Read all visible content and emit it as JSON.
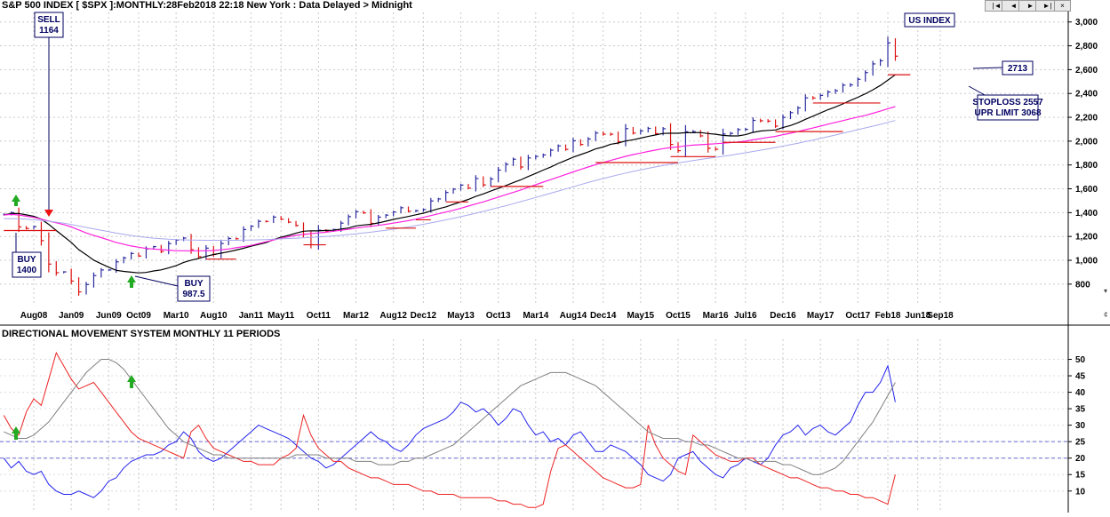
{
  "header": {
    "title": "S&P 500 INDEX [ $SPX ]:MONTHLY:28Feb2018 22:18 New York : Data Delayed > Midnight",
    "index_label": "US INDEX",
    "nav_buttons": [
      "|◄",
      "◄",
      "►",
      "►|"
    ],
    "close_label": "×"
  },
  "annotations": {
    "sell": [
      "SELL",
      "1164"
    ],
    "buy1": [
      "BUY",
      "1400"
    ],
    "buy2": [
      "BUY",
      "987.5"
    ],
    "last_price": "2713",
    "stoploss": "STOPLOSS 2557",
    "upr_limit": "UPR LIMIT 3068"
  },
  "colors": {
    "price_bar_up": "#2a2aa0",
    "price_bar_down": "#dd1111",
    "ma_short": "#000000",
    "ma_medium": "#ff22dd",
    "ma_long": "#a9a9ee",
    "support_lines": "#dd1111",
    "dm_plus": "#2222ee",
    "dm_minus": "#ee2222",
    "adx": "#808080",
    "buy_arrow": "#22aa22",
    "sell_arrow": "#ee1111"
  },
  "chart_data": [
    {
      "type": "bar",
      "subtype": "ohlc-monthly",
      "x_tick_labels": [
        "Aug08",
        "Jan09",
        "Jun09",
        "Oct09",
        "Mar10",
        "Aug10",
        "Jan11",
        "May11",
        "Oct11",
        "Mar12",
        "Aug12",
        "Dec12",
        "May13",
        "Oct13",
        "Mar14",
        "Aug14",
        "Dec14",
        "May15",
        "Oct15",
        "Mar16",
        "Jul16",
        "Dec16",
        "May17",
        "Oct17",
        "Feb18",
        "Jun18",
        "Sep18"
      ],
      "y_tick_labels": [
        "800",
        "1,000",
        "1,200",
        "1,400",
        "1,600",
        "1,800",
        "2,000",
        "2,200",
        "2,400",
        "2,600",
        "2,800",
        "3,000"
      ],
      "ylim": [
        620,
        3080
      ],
      "bars_start": "Apr2008",
      "closes": [
        1385,
        1400,
        1280,
        1267,
        1283,
        1165,
        968,
        896,
        903,
        826,
        735,
        797,
        872,
        919,
        919,
        987,
        1020,
        1057,
        1036,
        1096,
        1115,
        1074,
        1140,
        1169,
        1187,
        1089,
        1031,
        1102,
        1049,
        1141,
        1183,
        1181,
        1258,
        1286,
        1327,
        1326,
        1363,
        1345,
        1320,
        1292,
        1219,
        1131,
        1253,
        1247,
        1258,
        1312,
        1366,
        1408,
        1398,
        1310,
        1362,
        1379,
        1406,
        1441,
        1412,
        1416,
        1426,
        1498,
        1515,
        1569,
        1597,
        1631,
        1606,
        1686,
        1633,
        1682,
        1757,
        1806,
        1848,
        1783,
        1859,
        1872,
        1884,
        1924,
        1960,
        1931,
        2003,
        1972,
        2018,
        2068,
        2059,
        2058,
        1995,
        2105,
        2068,
        2086,
        2107,
        2063,
        2104,
        1972,
        1920,
        2079,
        2080,
        2044,
        1940,
        1932,
        2060,
        2065,
        2097,
        2099,
        2174,
        2171,
        2168,
        2126,
        2199,
        2239,
        2279,
        2363,
        2362,
        2384,
        2412,
        2423,
        2470,
        2472,
        2519,
        2575,
        2648,
        2674,
        2824,
        2713
      ],
      "series": [
        {
          "name": "Short MA",
          "values": [
            1380,
            1392,
            1393,
            1381,
            1369,
            1345,
            1301,
            1250,
            1201,
            1150,
            1090,
            1047,
            1002,
            971,
            942,
            916,
            907,
            900,
            894,
            898,
            911,
            920,
            936,
            955,
            982,
            1001,
            1016,
            1033,
            1049,
            1060,
            1072,
            1086,
            1101,
            1118,
            1133,
            1148,
            1173,
            1195,
            1209,
            1228,
            1244,
            1248,
            1247,
            1251,
            1252,
            1262,
            1271,
            1289,
            1296,
            1302,
            1314,
            1328,
            1343,
            1356,
            1368,
            1382,
            1395,
            1415,
            1432,
            1448,
            1470,
            1490,
            1511,
            1536,
            1557,
            1581,
            1603,
            1627,
            1652,
            1675,
            1703,
            1729,
            1757,
            1782,
            1813,
            1838,
            1866,
            1887,
            1909,
            1935,
            1951,
            1974,
            1984,
            2001,
            2012,
            2025,
            2039,
            2052,
            2065,
            2066,
            2066,
            2071,
            2071,
            2072,
            2064,
            2058,
            2048,
            2044,
            2044,
            2054,
            2074,
            2085,
            2090,
            2094,
            2114,
            2131,
            2154,
            2183,
            2209,
            2236,
            2264,
            2287,
            2312,
            2341,
            2368,
            2397,
            2431,
            2467,
            2511,
            2557
          ]
        },
        {
          "name": "Medium MA",
          "values": [
            1380,
            1385,
            1380,
            1370,
            1360,
            1345,
            1330,
            1315,
            1300,
            1280,
            1255,
            1230,
            1210,
            1190,
            1170,
            1150,
            1135,
            1120,
            1110,
            1100,
            1095,
            1090,
            1085,
            1080,
            1080,
            1080,
            1080,
            1080,
            1082,
            1088,
            1095,
            1105,
            1115,
            1125,
            1140,
            1155,
            1170,
            1185,
            1198,
            1210,
            1218,
            1224,
            1230,
            1236,
            1244,
            1252,
            1260,
            1270,
            1278,
            1285,
            1293,
            1302,
            1312,
            1322,
            1333,
            1345,
            1360,
            1375,
            1390,
            1405,
            1420,
            1437,
            1455,
            1473,
            1490,
            1510,
            1530,
            1550,
            1570,
            1590,
            1612,
            1634,
            1656,
            1677,
            1699,
            1720,
            1742,
            1763,
            1783,
            1803,
            1820,
            1838,
            1855,
            1872,
            1887,
            1900,
            1913,
            1925,
            1937,
            1946,
            1952,
            1960,
            1966,
            1970,
            1974,
            1978,
            1983,
            1988,
            1993,
            2000,
            2011,
            2021,
            2031,
            2040,
            2054,
            2066,
            2080,
            2096,
            2110,
            2126,
            2142,
            2157,
            2172,
            2188,
            2202,
            2216,
            2234,
            2252,
            2272,
            2290
          ]
        },
        {
          "name": "Long MA",
          "values": [
            1350,
            1350,
            1348,
            1345,
            1340,
            1335,
            1328,
            1320,
            1311,
            1300,
            1288,
            1276,
            1264,
            1252,
            1240,
            1228,
            1218,
            1208,
            1199,
            1192,
            1186,
            1181,
            1177,
            1174,
            1172,
            1170,
            1169,
            1168,
            1168,
            1168,
            1168,
            1168,
            1169,
            1170,
            1172,
            1174,
            1177,
            1180,
            1183,
            1186,
            1189,
            1192,
            1196,
            1200,
            1205,
            1210,
            1216,
            1222,
            1229,
            1236,
            1244,
            1252,
            1261,
            1270,
            1280,
            1291,
            1302,
            1314,
            1326,
            1339,
            1352,
            1366,
            1380,
            1395,
            1410,
            1426,
            1442,
            1458,
            1475,
            1492,
            1509,
            1527,
            1545,
            1563,
            1581,
            1599,
            1617,
            1635,
            1653,
            1670,
            1686,
            1702,
            1717,
            1732,
            1746,
            1759,
            1772,
            1784,
            1796,
            1807,
            1817,
            1827,
            1837,
            1846,
            1855,
            1864,
            1873,
            1882,
            1892,
            1902,
            1913,
            1924,
            1935,
            1946,
            1958,
            1970,
            1983,
            1996,
            2009,
            2023,
            2037,
            2051,
            2066,
            2081,
            2096,
            2111,
            2126,
            2141,
            2157,
            2173
          ]
        }
      ],
      "support_levels": [
        {
          "level": 1250,
          "from": "Apr2008",
          "to": "Nov2008"
        },
        {
          "level": 1010,
          "from": "Jul2010",
          "to": "Nov2010"
        },
        {
          "level": 1130,
          "from": "Aug2011",
          "to": "Nov2011"
        },
        {
          "level": 1270,
          "from": "Jul2012",
          "to": "Nov2012"
        },
        {
          "level": 1340,
          "from": "Nov2012",
          "to": "Jan2013"
        },
        {
          "level": 1490,
          "from": "Mar2013",
          "to": "Jun2013"
        },
        {
          "level": 1620,
          "from": "Sep2013",
          "to": "Apr2014"
        },
        {
          "level": 1820,
          "from": "Nov2014",
          "to": "Oct2015"
        },
        {
          "level": 1870,
          "from": "Sep2015",
          "to": "Mar2016"
        },
        {
          "level": 1990,
          "from": "Apr2016",
          "to": "Nov2016"
        },
        {
          "level": 2080,
          "from": "Nov2016",
          "to": "Aug2017"
        },
        {
          "level": 2320,
          "from": "Apr2017",
          "to": "Jan2018"
        },
        {
          "level": 2557,
          "from": "Feb2018",
          "to": "May2018"
        }
      ]
    },
    {
      "type": "line",
      "title": "DIRECTIONAL MOVEMENT SYSTEM MONTHLY 11 PERIODS",
      "y_tick_labels": [
        "10",
        "15",
        "20",
        "25",
        "30",
        "35",
        "40",
        "45",
        "50"
      ],
      "ylim": [
        4,
        55
      ],
      "reference_lines": [
        20,
        25
      ],
      "series": [
        {
          "name": "+DI",
          "values": [
            20,
            17,
            19,
            16,
            15,
            16,
            12,
            10,
            9,
            9,
            10,
            9,
            8,
            10,
            13,
            14,
            17,
            19,
            20,
            21,
            21,
            22,
            24,
            25,
            28,
            26,
            22,
            20,
            19,
            20,
            22,
            24,
            26,
            28,
            30,
            29,
            28,
            27,
            26,
            24,
            22,
            20,
            19,
            17,
            18,
            20,
            22,
            24,
            26,
            28,
            26,
            25,
            23,
            22,
            24,
            27,
            29,
            30,
            31,
            32,
            34,
            37,
            36,
            34,
            35,
            33,
            30,
            32,
            35,
            34,
            30,
            27,
            28,
            25,
            26,
            24,
            27,
            28,
            25,
            22,
            22,
            24,
            23,
            22,
            20,
            18,
            15,
            14,
            13,
            15,
            20,
            21,
            22,
            19,
            17,
            15,
            14,
            17,
            18,
            20,
            19,
            18,
            20,
            24,
            27,
            28,
            30,
            27,
            29,
            30,
            28,
            27,
            29,
            31,
            36,
            40,
            40,
            43,
            48,
            37
          ]
        },
        {
          "name": "-DI",
          "values": [
            33,
            29,
            27,
            34,
            38,
            36,
            44,
            52,
            48,
            44,
            41,
            42,
            43,
            40,
            37,
            34,
            31,
            28,
            26,
            25,
            24,
            23,
            22,
            21,
            20,
            28,
            30,
            26,
            23,
            22,
            21,
            20,
            19,
            19,
            18,
            18,
            18,
            20,
            21,
            23,
            33,
            27,
            23,
            21,
            19,
            19,
            17,
            16,
            15,
            14,
            14,
            13,
            12,
            12,
            12,
            11,
            10,
            10,
            9,
            9,
            9,
            8,
            8,
            8,
            8,
            8,
            7,
            7,
            6,
            6,
            5,
            5,
            6,
            16,
            23,
            24,
            22,
            20,
            18,
            16,
            14,
            13,
            12,
            11,
            11,
            12,
            30,
            24,
            20,
            18,
            16,
            15,
            27,
            25,
            23,
            21,
            20,
            19,
            19,
            20,
            20,
            18,
            17,
            16,
            15,
            14,
            14,
            13,
            12,
            11,
            11,
            10,
            10,
            9,
            9,
            8,
            8,
            7,
            6,
            15
          ]
        },
        {
          "name": "ADX",
          "values": [
            28,
            27,
            26,
            26,
            27,
            29,
            31,
            34,
            37,
            40,
            43,
            46,
            48,
            50,
            50,
            49,
            47,
            44,
            41,
            38,
            35,
            32,
            29,
            27,
            25,
            24,
            23,
            22,
            21,
            21,
            20,
            20,
            20,
            20,
            20,
            20,
            20,
            20,
            20,
            21,
            21,
            21,
            21,
            20,
            20,
            20,
            20,
            19,
            19,
            19,
            18,
            18,
            18,
            19,
            19,
            20,
            20,
            21,
            22,
            23,
            24,
            26,
            28,
            30,
            32,
            34,
            36,
            38,
            40,
            42,
            43,
            44,
            45,
            46,
            46,
            46,
            45,
            44,
            43,
            42,
            40,
            38,
            36,
            34,
            32,
            30,
            28,
            27,
            26,
            26,
            26,
            25,
            25,
            24,
            24,
            23,
            22,
            21,
            20,
            20,
            19,
            19,
            19,
            19,
            18,
            18,
            17,
            16,
            15,
            15,
            16,
            17,
            19,
            22,
            25,
            28,
            31,
            35,
            39,
            43
          ]
        }
      ]
    }
  ]
}
